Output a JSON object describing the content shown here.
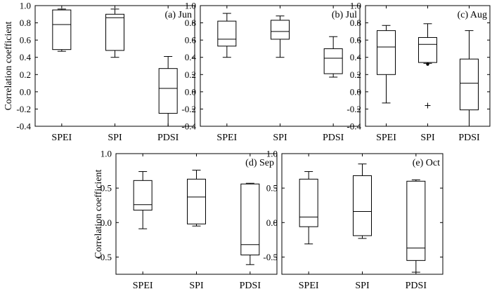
{
  "chart_data": [
    {
      "type": "box",
      "panel_label": "(a) Jun",
      "ylabel": "Correlation coefficient",
      "ylim": [
        -0.4,
        1.0
      ],
      "yticks": [
        -0.4,
        -0.2,
        0.0,
        0.2,
        0.4,
        0.6,
        0.8,
        1.0
      ],
      "ytick_labels": [
        "-0.4",
        "-0.2",
        "0.0",
        "0.2",
        "0.4",
        "0.6",
        "0.8",
        "1.0"
      ],
      "categories": [
        "SPEI",
        "SPI",
        "PDSI"
      ],
      "boxes": [
        {
          "min": 0.47,
          "q1": 0.49,
          "median": 0.78,
          "q3": 0.95,
          "max": 0.96,
          "outliers": []
        },
        {
          "min": 0.4,
          "q1": 0.48,
          "median": 0.86,
          "q3": 0.9,
          "max": 0.96,
          "outliers": []
        },
        {
          "min": -0.4,
          "q1": -0.25,
          "median": 0.04,
          "q3": 0.27,
          "max": 0.41,
          "outliers": []
        }
      ]
    },
    {
      "type": "box",
      "panel_label": "(b) Jul",
      "ylabel": "",
      "ylim": [
        -0.4,
        1.0
      ],
      "yticks": [
        -0.4,
        -0.2,
        0.0,
        0.2,
        0.4,
        0.6,
        0.8,
        1.0
      ],
      "ytick_labels": [
        "-0.4",
        "-0.2",
        "0.0",
        "0.2",
        "0.4",
        "0.6",
        "0.8",
        "1.0"
      ],
      "categories": [
        "SPEI",
        "SPI",
        "PDSI"
      ],
      "boxes": [
        {
          "min": 0.4,
          "q1": 0.53,
          "median": 0.61,
          "q3": 0.82,
          "max": 0.91,
          "outliers": []
        },
        {
          "min": 0.4,
          "q1": 0.61,
          "median": 0.7,
          "q3": 0.83,
          "max": 0.88,
          "outliers": []
        },
        {
          "min": 0.17,
          "q1": 0.21,
          "median": 0.39,
          "q3": 0.5,
          "max": 0.64,
          "outliers": []
        }
      ]
    },
    {
      "type": "box",
      "panel_label": "(c) Aug",
      "ylabel": "",
      "ylim": [
        -0.4,
        1.0
      ],
      "yticks": [
        -0.4,
        -0.2,
        0.0,
        0.2,
        0.4,
        0.6,
        0.8,
        1.0
      ],
      "ytick_labels": [
        "-0.4",
        "-0.2",
        "0.0",
        "0.2",
        "0.4",
        "0.6",
        "0.8",
        "1.0"
      ],
      "categories": [
        "SPEI",
        "SPI",
        "PDSI"
      ],
      "boxes": [
        {
          "min": -0.13,
          "q1": 0.2,
          "median": 0.52,
          "q3": 0.71,
          "max": 0.77,
          "outliers": []
        },
        {
          "min": 0.33,
          "q1": 0.34,
          "median": 0.55,
          "q3": 0.63,
          "max": 0.79,
          "outliers": [
            {
              "value": 0.32,
              "marker": "dot"
            },
            {
              "value": -0.16,
              "marker": "plus"
            }
          ]
        },
        {
          "min": -0.4,
          "q1": -0.21,
          "median": 0.1,
          "q3": 0.38,
          "max": 0.71,
          "outliers": []
        }
      ]
    },
    {
      "type": "box",
      "panel_label": "(d) Sep",
      "ylabel": "Correlation coefficient",
      "ylim": [
        -0.75,
        1.0
      ],
      "yticks": [
        -0.5,
        0.0,
        0.5,
        1.0
      ],
      "ytick_labels": [
        "-0.5",
        "0.0",
        "0.5",
        "1.0"
      ],
      "categories": [
        "SPEI",
        "SPI",
        "PDSI"
      ],
      "boxes": [
        {
          "min": -0.09,
          "q1": 0.18,
          "median": 0.26,
          "q3": 0.61,
          "max": 0.74,
          "outliers": []
        },
        {
          "min": -0.05,
          "q1": -0.02,
          "median": 0.37,
          "q3": 0.63,
          "max": 0.76,
          "outliers": []
        },
        {
          "min": -0.61,
          "q1": -0.47,
          "median": -0.32,
          "q3": 0.56,
          "max": 0.57,
          "outliers": []
        }
      ]
    },
    {
      "type": "box",
      "panel_label": "(e) Oct",
      "ylabel": "",
      "ylim": [
        -0.75,
        1.0
      ],
      "yticks": [
        -0.5,
        0.0,
        0.5,
        1.0
      ],
      "ytick_labels": [
        "-0.5",
        "0.0",
        "0.5",
        "1.0"
      ],
      "categories": [
        "SPEI",
        "SPI",
        "PDSI"
      ],
      "boxes": [
        {
          "min": -0.31,
          "q1": -0.06,
          "median": 0.08,
          "q3": 0.63,
          "max": 0.74,
          "outliers": []
        },
        {
          "min": -0.23,
          "q1": -0.19,
          "median": 0.16,
          "q3": 0.68,
          "max": 0.85,
          "outliers": []
        },
        {
          "min": -0.72,
          "q1": -0.55,
          "median": -0.37,
          "q3": 0.6,
          "max": 0.62,
          "outliers": []
        }
      ]
    }
  ]
}
